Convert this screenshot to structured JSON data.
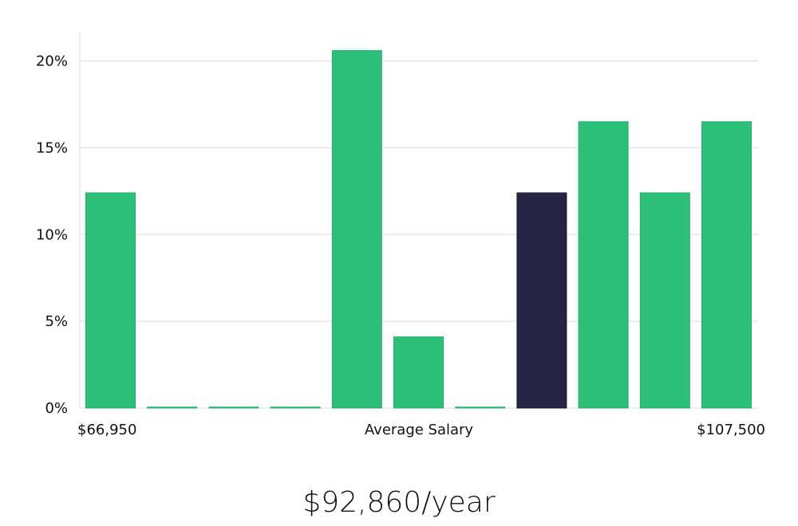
{
  "chart_data": {
    "type": "bar",
    "ylim": [
      0,
      21.7
    ],
    "yticks": [
      0,
      5,
      10,
      15,
      20
    ],
    "ytick_labels": [
      "0%",
      "5%",
      "10%",
      "15%",
      "20%"
    ],
    "values": [
      12.4,
      0,
      0,
      0,
      20.6,
      4.1,
      0,
      12.4,
      16.5,
      12.4,
      16.5
    ],
    "highlight_index": 7,
    "colors": {
      "bar": "#2bbf77",
      "highlight": "#272544",
      "grid": "#dddddd"
    },
    "x_min_label": "$66,950",
    "x_center_label": "Average Salary",
    "x_max_label": "$107,500",
    "grid": true
  },
  "summary": {
    "average": "$92,860/year"
  }
}
